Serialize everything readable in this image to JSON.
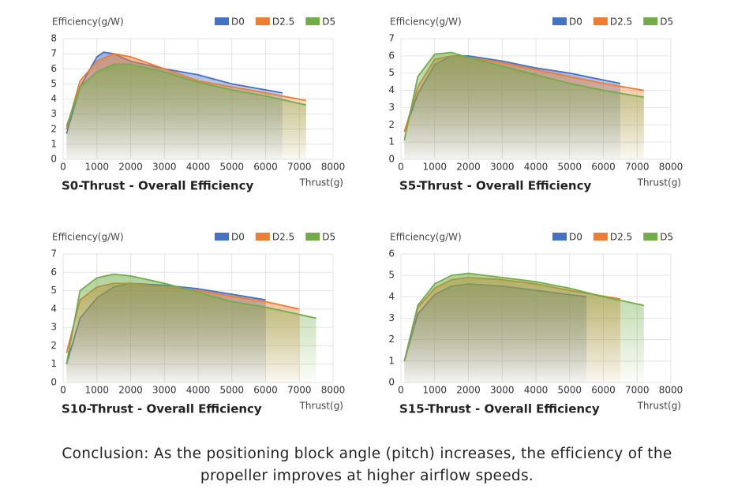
{
  "chart_data": [
    {
      "type": "area",
      "title": "S0-Thrust - Overall Efficiency",
      "y_label": "Efficiency(g/W)",
      "x_label": "Thrust(g)",
      "xlim": [
        0,
        8000
      ],
      "xticks": [
        0,
        1000,
        2000,
        3000,
        4000,
        5000,
        6000,
        7000,
        8000
      ],
      "ylim": [
        0,
        8
      ],
      "yticks": [
        0,
        1,
        2,
        3,
        4,
        5,
        6,
        7,
        8
      ],
      "grid": true,
      "legend": "top-right",
      "series": [
        {
          "name": "D0",
          "color": "#4472c4",
          "x": [
            100,
            500,
            1000,
            1200,
            1500,
            2000,
            3000,
            4000,
            5000,
            6000,
            6500
          ],
          "values": [
            1.7,
            4.8,
            6.8,
            7.1,
            7.0,
            6.5,
            6.0,
            5.6,
            5.0,
            4.6,
            4.4
          ]
        },
        {
          "name": "D2.5",
          "color": "#ed7d31",
          "x": [
            100,
            500,
            1000,
            1500,
            2000,
            3000,
            4000,
            5000,
            6000,
            7200
          ],
          "values": [
            2.0,
            5.2,
            6.5,
            7.0,
            6.8,
            6.0,
            5.2,
            4.8,
            4.4,
            3.9
          ]
        },
        {
          "name": "D5",
          "color": "#70ad47",
          "x": [
            100,
            500,
            1000,
            1500,
            2000,
            3000,
            4000,
            5000,
            6000,
            7200
          ],
          "values": [
            2.2,
            4.8,
            5.8,
            6.3,
            6.3,
            5.8,
            5.1,
            4.6,
            4.2,
            3.6
          ]
        }
      ]
    },
    {
      "type": "area",
      "title": "S5-Thrust - Overall Efficiency",
      "y_label": "Efficiency(g/W)",
      "x_label": "Thrust(g)",
      "xlim": [
        0,
        8000
      ],
      "xticks": [
        0,
        1000,
        2000,
        3000,
        4000,
        5000,
        6000,
        7000,
        8000
      ],
      "ylim": [
        0,
        7
      ],
      "yticks": [
        0,
        1,
        2,
        3,
        4,
        5,
        6,
        7
      ],
      "grid": true,
      "legend": "top-right",
      "series": [
        {
          "name": "D0",
          "color": "#4472c4",
          "x": [
            100,
            500,
            1000,
            1500,
            2000,
            3000,
            4000,
            5000,
            6000,
            6500
          ],
          "values": [
            1.6,
            3.8,
            5.5,
            6.0,
            6.0,
            5.7,
            5.3,
            5.0,
            4.6,
            4.4
          ]
        },
        {
          "name": "D2.5",
          "color": "#ed7d31",
          "x": [
            100,
            500,
            1000,
            1500,
            2000,
            3000,
            4000,
            5000,
            6000,
            7200
          ],
          "values": [
            1.6,
            4.2,
            5.8,
            6.0,
            5.9,
            5.6,
            5.2,
            4.8,
            4.4,
            4.0
          ]
        },
        {
          "name": "D5",
          "color": "#70ad47",
          "x": [
            100,
            500,
            1000,
            1500,
            2000,
            3000,
            4000,
            5000,
            6000,
            7200
          ],
          "values": [
            1.1,
            4.8,
            6.1,
            6.2,
            5.9,
            5.4,
            4.9,
            4.4,
            4.0,
            3.6
          ]
        }
      ]
    },
    {
      "type": "area",
      "title": "S10-Thrust - Overall Efficiency",
      "y_label": "Efficiency(g/W)",
      "x_label": "Thrust(g)",
      "xlim": [
        0,
        8000
      ],
      "xticks": [
        0,
        1000,
        2000,
        3000,
        4000,
        5000,
        6000,
        7000,
        8000
      ],
      "ylim": [
        0,
        7
      ],
      "yticks": [
        0,
        1,
        2,
        3,
        4,
        5,
        6,
        7
      ],
      "grid": true,
      "legend": "top-right",
      "series": [
        {
          "name": "D0",
          "color": "#4472c4",
          "x": [
            100,
            500,
            1000,
            1500,
            2000,
            3000,
            4000,
            5000,
            6000
          ],
          "values": [
            1.0,
            3.5,
            4.6,
            5.2,
            5.4,
            5.3,
            5.1,
            4.8,
            4.5
          ]
        },
        {
          "name": "D2.5",
          "color": "#ed7d31",
          "x": [
            100,
            500,
            1000,
            1500,
            2000,
            3000,
            4000,
            5000,
            6000,
            7000
          ],
          "values": [
            1.6,
            4.5,
            5.2,
            5.4,
            5.4,
            5.2,
            5.0,
            4.7,
            4.4,
            4.0
          ]
        },
        {
          "name": "D5",
          "color": "#70ad47",
          "x": [
            100,
            500,
            1000,
            1500,
            2000,
            3000,
            4000,
            5000,
            6000,
            7000,
            7500
          ],
          "values": [
            1.0,
            5.0,
            5.7,
            5.9,
            5.8,
            5.4,
            4.9,
            4.4,
            4.1,
            3.7,
            3.5
          ]
        }
      ]
    },
    {
      "type": "area",
      "title": "S15-Thrust - Overall Efficiency",
      "y_label": "Efficiency(g/W)",
      "x_label": "Thrust(g)",
      "xlim": [
        0,
        8000
      ],
      "xticks": [
        0,
        1000,
        2000,
        3000,
        4000,
        5000,
        6000,
        7000,
        8000
      ],
      "ylim": [
        0,
        6
      ],
      "yticks": [
        0,
        1,
        2,
        3,
        4,
        5,
        6
      ],
      "grid": true,
      "legend": "top-right",
      "series": [
        {
          "name": "D0",
          "color": "#4472c4",
          "x": [
            100,
            500,
            1000,
            1500,
            2000,
            3000,
            4000,
            5000,
            5500
          ],
          "values": [
            1.0,
            3.2,
            4.1,
            4.5,
            4.6,
            4.5,
            4.3,
            4.1,
            4.0
          ]
        },
        {
          "name": "D2.5",
          "color": "#ed7d31",
          "x": [
            100,
            500,
            1000,
            1500,
            2000,
            3000,
            4000,
            5000,
            6500
          ],
          "values": [
            1.0,
            3.5,
            4.4,
            4.8,
            4.9,
            4.8,
            4.6,
            4.3,
            3.9
          ]
        },
        {
          "name": "D5",
          "color": "#70ad47",
          "x": [
            100,
            500,
            1000,
            1500,
            2000,
            3000,
            4000,
            5000,
            6000,
            7200
          ],
          "values": [
            1.0,
            3.6,
            4.6,
            5.0,
            5.1,
            4.9,
            4.7,
            4.4,
            4.0,
            3.6
          ]
        }
      ]
    }
  ],
  "conclusion": "Conclusion: As the positioning block angle (pitch) increases, the efficiency of the propeller improves at higher airflow speeds."
}
